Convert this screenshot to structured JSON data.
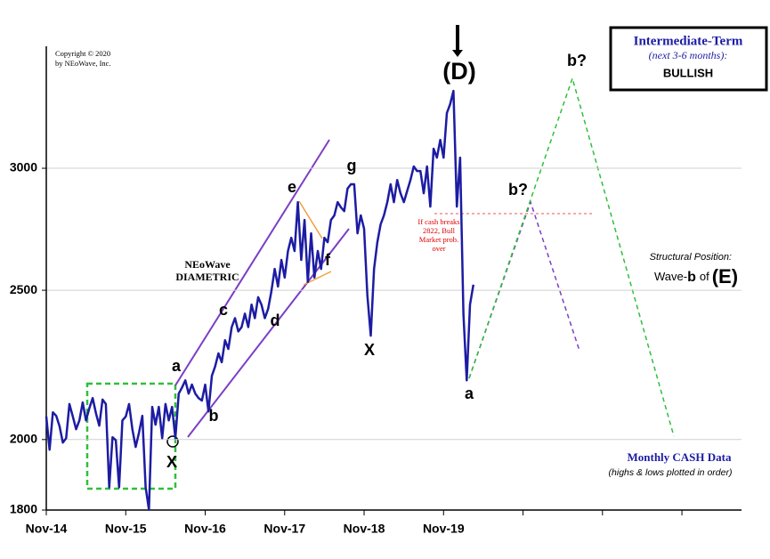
{
  "chart_data": {
    "type": "line",
    "color": "#1c1ca3",
    "log_scale": true,
    "grid": true,
    "x": [
      0,
      1,
      2,
      3,
      4,
      5,
      6,
      7,
      8,
      9,
      10,
      11,
      12,
      13,
      14,
      15,
      16,
      17,
      18,
      19,
      20,
      21,
      22,
      23,
      24,
      25,
      26,
      27,
      28,
      29,
      30,
      31,
      32,
      33,
      34,
      35,
      36,
      37,
      38,
      39,
      40,
      41,
      42,
      43,
      44,
      45,
      46,
      47,
      48,
      49,
      50,
      51,
      52,
      53,
      54,
      55,
      56,
      57,
      58,
      59,
      60,
      61,
      62,
      63,
      64,
      65,
      66,
      67,
      68,
      69,
      70,
      71,
      72,
      73,
      74,
      75,
      76,
      77,
      78,
      79,
      80,
      81,
      82,
      83,
      84,
      85,
      86,
      87,
      88,
      89,
      90,
      91,
      92,
      93,
      94,
      95,
      96,
      97,
      98,
      99,
      100,
      101,
      102,
      103,
      104,
      105,
      106,
      107,
      108,
      109,
      110,
      111,
      112,
      113,
      114,
      115,
      116,
      117,
      118,
      119,
      120,
      121,
      122,
      123,
      124,
      125,
      126,
      127,
      128,
      129
    ],
    "values": [
      2070,
      1970,
      2083,
      2072,
      2040,
      1991,
      2004,
      2109,
      2070,
      2031,
      2058,
      2114,
      2058,
      2095,
      2128,
      2080,
      2042,
      2123,
      2109,
      1862,
      2007,
      1998,
      1862,
      2058,
      2070,
      2109,
      2031,
      1978,
      2020,
      2072,
      1862,
      1801,
      2100,
      2045,
      2100,
      2004,
      2109,
      2058,
      2100,
      2004,
      2142,
      2162,
      2185,
      2142,
      2171,
      2142,
      2128,
      2120,
      2171,
      2086,
      2200,
      2231,
      2275,
      2245,
      2320,
      2290,
      2366,
      2398,
      2351,
      2366,
      2414,
      2366,
      2447,
      2398,
      2474,
      2447,
      2398,
      2431,
      2497,
      2581,
      2514,
      2616,
      2548,
      2651,
      2704,
      2651,
      2852,
      2616,
      2777,
      2531,
      2722,
      2548,
      2651,
      2581,
      2704,
      2686,
      2777,
      2796,
      2852,
      2830,
      2814,
      2910,
      2929,
      2929,
      2722,
      2796,
      2741,
      2481,
      2336,
      2581,
      2686,
      2759,
      2796,
      2852,
      2929,
      2852,
      2948,
      2890,
      2852,
      2900,
      2948,
      3008,
      2988,
      2988,
      2890,
      3008,
      2833,
      3089,
      3048,
      3130,
      3048,
      3258,
      3302,
      3368,
      2833,
      3048,
      2414,
      2185,
      2447,
      2521
    ],
    "xlim": [
      0,
      210
    ],
    "xticks": [
      {
        "value": 0,
        "label": "Nov-14"
      },
      {
        "value": 24,
        "label": "Nov-15"
      },
      {
        "value": 48,
        "label": "Nov-16"
      },
      {
        "value": 72,
        "label": "Nov-17"
      },
      {
        "value": 96,
        "label": "Nov-18"
      },
      {
        "value": 120,
        "label": "Nov-19"
      },
      {
        "value": 144,
        "label": null
      },
      {
        "value": 168,
        "label": null
      },
      {
        "value": 192,
        "label": null
      }
    ],
    "ylim": [
      1800,
      3600
    ],
    "yticks": [
      1800,
      2000,
      2500,
      3000
    ],
    "annotations": [
      "Copyright © 2020",
      "by NEoWave, Inc.",
      "a",
      "b",
      "c",
      "d",
      "e",
      "f",
      "g",
      "X",
      "X",
      "(D)",
      "a",
      "b?",
      "b?",
      "NEoWave",
      "DIAMETRIC",
      "If cash breaks",
      "2822, Bull",
      "Market prob.",
      "over",
      "Intermediate-Term",
      "(next 3-6 months):",
      "BULLISH",
      "Structural Position:",
      "Wave-",
      "b",
      "of",
      "(E)",
      "Monthly CASH Data",
      "(highs & lows plotted in order)"
    ]
  }
}
